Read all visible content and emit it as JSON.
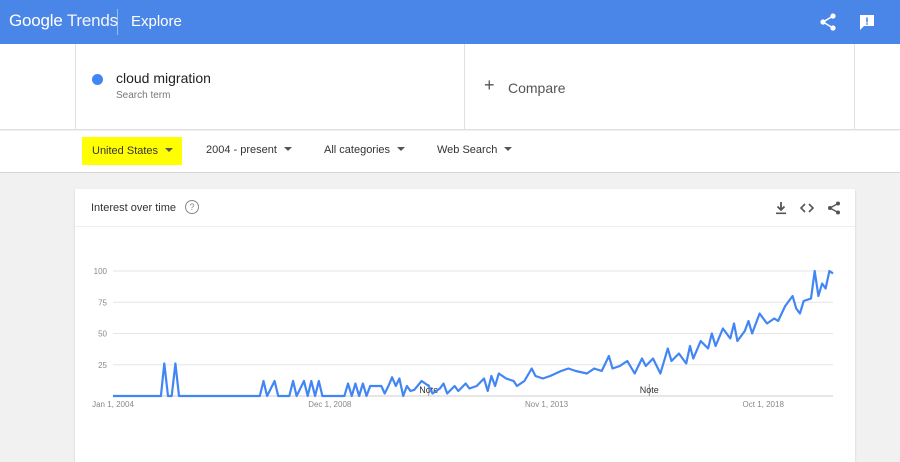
{
  "header": {
    "logo_google": "Google",
    "logo_trends": "Trends",
    "section": "Explore"
  },
  "search": {
    "term": "cloud migration",
    "term_type": "Search term",
    "term_color": "#4285f4",
    "compare_label": "Compare"
  },
  "filters": {
    "geo": "United States",
    "geo_highlight": "#ffff00",
    "time": "2004 - present",
    "category": "All categories",
    "property": "Web Search"
  },
  "card": {
    "title": "Interest over time",
    "help_glyph": "?"
  },
  "chart_data": {
    "type": "line",
    "title": "Interest over time",
    "series": [
      {
        "name": "cloud migration",
        "color": "#4285f4"
      }
    ],
    "y_ticks": [
      25,
      50,
      75,
      100
    ],
    "ylim": [
      0,
      100
    ],
    "x_tick_labels": [
      "Jan 1, 2004",
      "Dec 1, 2008",
      "Nov 1, 2013",
      "Oct 1, 2018"
    ],
    "x_tick_dates": [
      "2004-01-01",
      "2008-12-01",
      "2013-11-01",
      "2018-10-01"
    ],
    "xlim": [
      "2004-01-01",
      "2020-05-01"
    ],
    "grid": true,
    "annotations": [
      {
        "label": "Note",
        "date": "2011-03-01"
      },
      {
        "label": "Note",
        "date": "2016-03-01"
      }
    ],
    "points": [
      [
        "2004-01-01",
        0
      ],
      [
        "2005-01-01",
        0
      ],
      [
        "2005-02-01",
        0
      ],
      [
        "2005-03-01",
        26
      ],
      [
        "2005-04-01",
        0
      ],
      [
        "2005-05-01",
        0
      ],
      [
        "2005-06-01",
        26
      ],
      [
        "2005-07-01",
        0
      ],
      [
        "2007-05-01",
        0
      ],
      [
        "2007-06-01",
        12
      ],
      [
        "2007-07-01",
        0
      ],
      [
        "2007-09-01",
        12
      ],
      [
        "2007-10-01",
        0
      ],
      [
        "2008-01-01",
        0
      ],
      [
        "2008-02-01",
        12
      ],
      [
        "2008-03-01",
        0
      ],
      [
        "2008-05-01",
        12
      ],
      [
        "2008-06-01",
        0
      ],
      [
        "2008-07-01",
        12
      ],
      [
        "2008-08-01",
        0
      ],
      [
        "2008-09-01",
        12
      ],
      [
        "2008-10-01",
        0
      ],
      [
        "2009-04-01",
        0
      ],
      [
        "2009-05-01",
        10
      ],
      [
        "2009-06-01",
        0
      ],
      [
        "2009-07-01",
        10
      ],
      [
        "2009-08-01",
        0
      ],
      [
        "2009-09-01",
        10
      ],
      [
        "2009-10-01",
        0
      ],
      [
        "2009-11-01",
        8
      ],
      [
        "2010-02-01",
        8
      ],
      [
        "2010-03-01",
        2
      ],
      [
        "2010-04-01",
        8
      ],
      [
        "2010-05-01",
        15
      ],
      [
        "2010-06-01",
        8
      ],
      [
        "2010-07-01",
        14
      ],
      [
        "2010-08-01",
        0
      ],
      [
        "2010-09-01",
        8
      ],
      [
        "2010-10-01",
        4
      ],
      [
        "2010-11-01",
        5
      ],
      [
        "2011-01-01",
        12
      ],
      [
        "2011-03-01",
        8
      ],
      [
        "2011-04-01",
        2
      ],
      [
        "2011-06-01",
        6
      ],
      [
        "2011-07-01",
        10
      ],
      [
        "2011-08-01",
        2
      ],
      [
        "2011-10-01",
        8
      ],
      [
        "2011-11-01",
        4
      ],
      [
        "2012-01-01",
        10
      ],
      [
        "2012-02-01",
        6
      ],
      [
        "2012-04-01",
        8
      ],
      [
        "2012-06-01",
        14
      ],
      [
        "2012-07-01",
        4
      ],
      [
        "2012-08-01",
        16
      ],
      [
        "2012-09-01",
        8
      ],
      [
        "2012-10-01",
        18
      ],
      [
        "2012-12-01",
        14
      ],
      [
        "2013-02-01",
        12
      ],
      [
        "2013-03-01",
        8
      ],
      [
        "2013-05-01",
        12
      ],
      [
        "2013-07-01",
        22
      ],
      [
        "2013-08-01",
        16
      ],
      [
        "2013-10-01",
        14
      ],
      [
        "2013-12-01",
        16
      ],
      [
        "2014-03-01",
        20
      ],
      [
        "2014-05-01",
        22
      ],
      [
        "2014-07-01",
        20
      ],
      [
        "2014-10-01",
        18
      ],
      [
        "2014-12-01",
        22
      ],
      [
        "2015-02-01",
        20
      ],
      [
        "2015-04-01",
        32
      ],
      [
        "2015-05-01",
        22
      ],
      [
        "2015-07-01",
        24
      ],
      [
        "2015-09-01",
        28
      ],
      [
        "2015-11-01",
        18
      ],
      [
        "2016-01-01",
        30
      ],
      [
        "2016-02-01",
        24
      ],
      [
        "2016-04-01",
        30
      ],
      [
        "2016-06-01",
        18
      ],
      [
        "2016-08-01",
        38
      ],
      [
        "2016-09-01",
        28
      ],
      [
        "2016-11-01",
        34
      ],
      [
        "2017-01-01",
        26
      ],
      [
        "2017-02-01",
        40
      ],
      [
        "2017-03-01",
        30
      ],
      [
        "2017-05-01",
        44
      ],
      [
        "2017-07-01",
        38
      ],
      [
        "2017-08-01",
        50
      ],
      [
        "2017-09-01",
        40
      ],
      [
        "2017-11-01",
        54
      ],
      [
        "2018-01-01",
        46
      ],
      [
        "2018-02-01",
        58
      ],
      [
        "2018-03-01",
        44
      ],
      [
        "2018-05-01",
        52
      ],
      [
        "2018-06-01",
        60
      ],
      [
        "2018-07-01",
        50
      ],
      [
        "2018-09-01",
        66
      ],
      [
        "2018-11-01",
        58
      ],
      [
        "2019-01-01",
        62
      ],
      [
        "2019-02-01",
        60
      ],
      [
        "2019-04-01",
        72
      ],
      [
        "2019-06-01",
        80
      ],
      [
        "2019-07-01",
        70
      ],
      [
        "2019-08-01",
        66
      ],
      [
        "2019-09-01",
        76
      ],
      [
        "2019-11-01",
        78
      ],
      [
        "2019-12-01",
        100
      ],
      [
        "2020-01-01",
        80
      ],
      [
        "2020-02-01",
        90
      ],
      [
        "2020-03-01",
        86
      ],
      [
        "2020-04-01",
        100
      ],
      [
        "2020-05-01",
        98
      ]
    ]
  }
}
